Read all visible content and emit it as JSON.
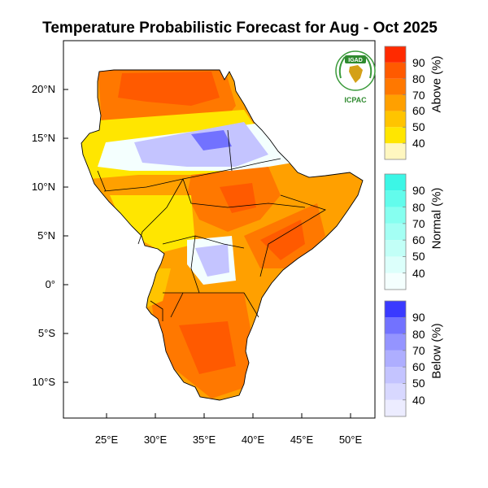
{
  "title": "Temperature Probabilistic Forecast for Aug - Oct 2025",
  "axes": {
    "lat_labels": [
      {
        "label": "20°N",
        "value": 20
      },
      {
        "label": "15°N",
        "value": 15
      },
      {
        "label": "10°N",
        "value": 10
      },
      {
        "label": "5°N",
        "value": 5
      },
      {
        "label": "0°",
        "value": 0
      },
      {
        "label": "5°S",
        "value": -5
      },
      {
        "label": "10°S",
        "value": -10
      }
    ],
    "lon_labels": [
      {
        "label": "25°E",
        "value": 25
      },
      {
        "label": "30°E",
        "value": 30
      },
      {
        "label": "35°E",
        "value": 35
      },
      {
        "label": "40°E",
        "value": 40
      },
      {
        "label": "45°E",
        "value": 45
      },
      {
        "label": "50°E",
        "value": 50
      }
    ]
  },
  "logo": {
    "top_text": "IGAD",
    "bottom_text": "ICPAC"
  },
  "legend": {
    "above": {
      "label": "Above (%)",
      "ticks": [
        "40",
        "50",
        "60",
        "70",
        "80",
        "90"
      ],
      "colors": [
        "#fff7c0",
        "#ffe600",
        "#ffc400",
        "#ffa000",
        "#ff7800",
        "#ff5a00",
        "#ff2a00"
      ]
    },
    "normal": {
      "label": "Normal (%)",
      "ticks": [
        "40",
        "50",
        "60",
        "70",
        "80",
        "90"
      ],
      "colors": [
        "#f4fffe",
        "#dcfffb",
        "#c2fff7",
        "#a4fff4",
        "#86fff0",
        "#62fcec",
        "#3cf6e6"
      ]
    },
    "below": {
      "label": "Below (%)",
      "ticks": [
        "40",
        "50",
        "60",
        "70",
        "80",
        "90"
      ],
      "colors": [
        "#ececff",
        "#d8d8ff",
        "#c4c4ff",
        "#aeaeff",
        "#9494ff",
        "#7272ff",
        "#3a3aff"
      ]
    }
  }
}
